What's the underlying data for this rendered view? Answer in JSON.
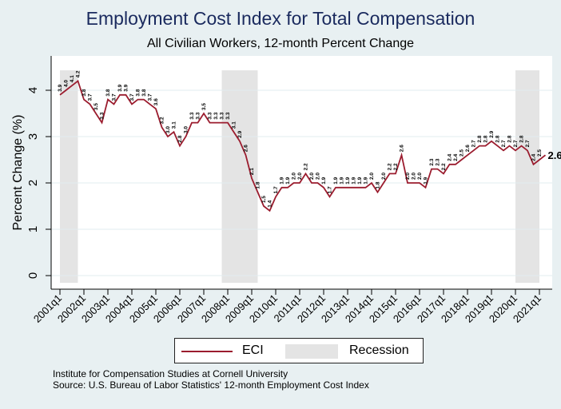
{
  "chart_data": {
    "type": "line",
    "title": "Employment Cost Index for Total Compensation",
    "subtitle": "All Civilian Workers, 12-month Percent Change",
    "xlabel": "",
    "ylabel": "Percent Change (%)",
    "ylim": [
      0,
      4.4
    ],
    "yticks": [
      0,
      1,
      2,
      3,
      4
    ],
    "xtick_labels": [
      "2001q1",
      "2002q1",
      "2003q1",
      "2004q1",
      "2005q1",
      "2006q1",
      "2007q1",
      "2008q1",
      "2009q1",
      "2010q1",
      "2011q1",
      "2012q1",
      "2013q1",
      "2014q1",
      "2015q1",
      "2016q1",
      "2017q1",
      "2018q1",
      "2019q1",
      "2020q1",
      "2021q1"
    ],
    "start_quarter": "2001q1",
    "series": [
      {
        "name": "ECI",
        "color": "#9b1c2e",
        "values": [
          3.9,
          4.0,
          4.1,
          4.2,
          3.8,
          3.7,
          3.5,
          3.3,
          3.8,
          3.7,
          3.9,
          3.9,
          3.7,
          3.8,
          3.8,
          3.7,
          3.6,
          3.2,
          3.0,
          3.1,
          2.8,
          3.0,
          3.3,
          3.3,
          3.5,
          3.3,
          3.3,
          3.3,
          3.3,
          3.1,
          2.9,
          2.6,
          2.1,
          1.8,
          1.5,
          1.4,
          1.7,
          1.9,
          1.9,
          2.0,
          2.0,
          2.2,
          2.0,
          2.0,
          1.9,
          1.7,
          1.9,
          1.9,
          1.9,
          1.9,
          1.9,
          1.9,
          2.0,
          1.8,
          2.0,
          2.2,
          2.2,
          2.6,
          2.0,
          2.0,
          2.0,
          1.9,
          2.3,
          2.3,
          2.2,
          2.4,
          2.4,
          2.5,
          2.6,
          2.7,
          2.8,
          2.8,
          2.9,
          2.8,
          2.7,
          2.8,
          2.7,
          2.8,
          2.7,
          2.4,
          2.5,
          2.6
        ]
      }
    ],
    "recessions": [
      {
        "start": "2001q1",
        "end": "2001q4"
      },
      {
        "start": "2007q4",
        "end": "2009q2"
      },
      {
        "start": "2020q1",
        "end": "2021q1"
      }
    ],
    "last_value_label": "2.6",
    "legend": {
      "position": "bottom",
      "items": [
        "ECI",
        "Recession"
      ]
    },
    "grid": true
  },
  "footer": {
    "line1": "Institute for Compensation Studies at Cornell University",
    "line2": "Source: U.S. Bureau of Labor Statistics' 12-month Employment Cost Index"
  },
  "colors": {
    "line": "#9b1c2e",
    "recession": "#e4e4e4",
    "background": "#e8f0f2"
  }
}
